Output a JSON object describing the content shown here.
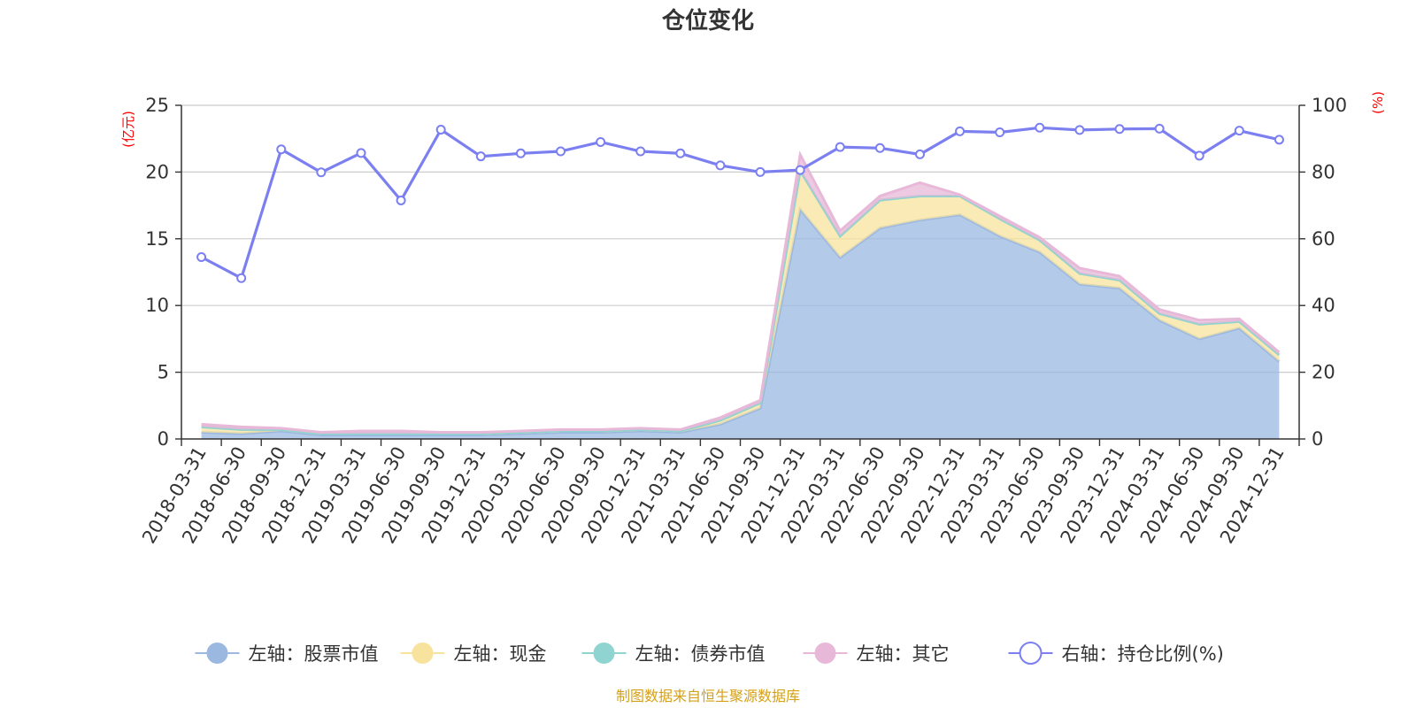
{
  "chart_data": {
    "type": "area",
    "title": "仓位变化",
    "left_unit": "(亿元)",
    "right_unit": "(%)",
    "left_ylim": [
      0,
      25
    ],
    "left_ticks": [
      "0",
      "5",
      "10",
      "15",
      "20",
      "25"
    ],
    "right_ylim": [
      0,
      100
    ],
    "right_ticks": [
      "0",
      "20",
      "40",
      "60",
      "80",
      "100"
    ],
    "categories": [
      "2018-03-31",
      "2018-06-30",
      "2018-09-30",
      "2018-12-31",
      "2019-03-31",
      "2019-06-30",
      "2019-09-30",
      "2019-12-31",
      "2020-03-31",
      "2020-06-30",
      "2020-09-30",
      "2020-12-31",
      "2021-03-31",
      "2021-06-30",
      "2021-09-30",
      "2021-12-31",
      "2022-03-31",
      "2022-06-30",
      "2022-09-30",
      "2022-12-31",
      "2023-03-31",
      "2023-06-30",
      "2023-09-30",
      "2023-12-31",
      "2024-03-31",
      "2024-06-30",
      "2024-09-30",
      "2024-12-31"
    ],
    "series": [
      {
        "name": "左轴：股票市值",
        "axis": "left",
        "kind": "stacked-area",
        "color": "#9bb8e1",
        "values": [
          0.5,
          0.4,
          0.6,
          0.3,
          0.3,
          0.3,
          0.3,
          0.3,
          0.4,
          0.5,
          0.5,
          0.6,
          0.5,
          1.1,
          2.3,
          17.2,
          13.6,
          15.8,
          16.4,
          16.8,
          15.2,
          14.0,
          11.6,
          11.3,
          8.9,
          7.5,
          8.3,
          5.8
        ]
      },
      {
        "name": "左轴：现金",
        "axis": "left",
        "kind": "stacked-area",
        "color": "#f7e39e",
        "values": [
          0.4,
          0.3,
          0.1,
          0.1,
          0.1,
          0.1,
          0.1,
          0.1,
          0.1,
          0.1,
          0.1,
          0.1,
          0.1,
          0.3,
          0.4,
          2.9,
          1.6,
          2.1,
          1.8,
          1.4,
          1.3,
          0.9,
          0.8,
          0.6,
          0.5,
          1.1,
          0.5,
          0.5
        ]
      },
      {
        "name": "左轴：债券市值",
        "axis": "left",
        "kind": "stacked-area",
        "color": "#8fd4d0",
        "values": [
          0,
          0,
          0,
          0,
          0,
          0,
          0,
          0,
          0,
          0,
          0,
          0,
          0,
          0,
          0,
          0,
          0,
          0,
          0,
          0,
          0,
          0,
          0,
          0,
          0,
          0,
          0,
          0
        ]
      },
      {
        "name": "左轴：其它",
        "axis": "left",
        "kind": "stacked-area",
        "color": "#e8b8d8",
        "values": [
          0.2,
          0.2,
          0.1,
          0.1,
          0.2,
          0.2,
          0.1,
          0.1,
          0.1,
          0.1,
          0.1,
          0.1,
          0.1,
          0.2,
          0.2,
          1.2,
          0.4,
          0.3,
          1.0,
          0.1,
          0.2,
          0.2,
          0.4,
          0.3,
          0.3,
          0.3,
          0.2,
          0.2
        ]
      },
      {
        "name": "右轴：持仓比例(%)",
        "axis": "right",
        "kind": "line",
        "color": "#7b7ff0",
        "values": [
          54.5,
          48.2,
          86.8,
          79.9,
          85.7,
          71.5,
          92.7,
          84.7,
          85.6,
          86.2,
          89.0,
          86.2,
          85.6,
          82.0,
          80.0,
          80.6,
          87.5,
          87.2,
          85.3,
          92.2,
          91.9,
          93.3,
          92.6,
          92.9,
          93.0,
          84.9,
          92.4,
          89.7
        ]
      }
    ],
    "legend_position": "bottom",
    "grid": "horizontal"
  },
  "source": "制图数据来自恒生聚源数据库"
}
